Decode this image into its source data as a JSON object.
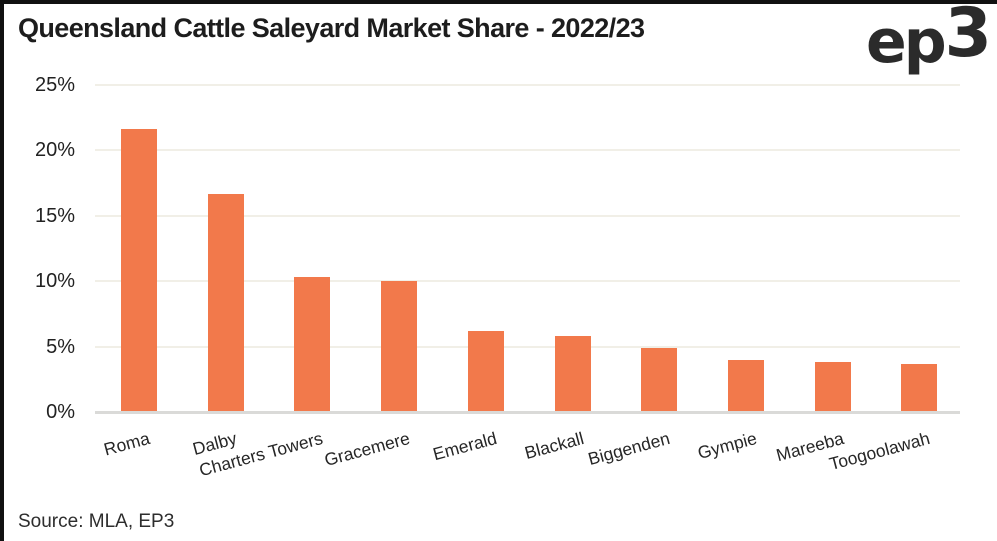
{
  "header": {
    "title": "Queensland Cattle Saleyard Market Share - 2022/23",
    "logo_ep": "ep",
    "logo_3": "3"
  },
  "footer": {
    "source": "Source: MLA, EP3"
  },
  "colors": {
    "bar": "#f2794b",
    "gridline": "#f1efe7",
    "baseline": "#dadad8",
    "title_text": "#1d1d1d",
    "border": "#111111"
  },
  "chart_data": {
    "type": "bar",
    "title": "Queensland Cattle Saleyard Market Share - 2022/23",
    "categories": [
      "Roma",
      "Dalby",
      "Charters Towers",
      "Gracemere",
      "Emerald",
      "Blackall",
      "Biggenden",
      "Gympie",
      "Mareeba",
      "Toogoolawah"
    ],
    "values": [
      21.6,
      16.7,
      10.3,
      10.0,
      6.2,
      5.8,
      4.9,
      4.0,
      3.8,
      3.7
    ],
    "unit": "%",
    "xlabel": "",
    "ylabel": "",
    "ylim": [
      0,
      25
    ],
    "yticks": [
      0,
      5,
      10,
      15,
      20,
      25
    ],
    "ytick_labels": [
      "0%",
      "5%",
      "10%",
      "15%",
      "20%",
      "25%"
    ],
    "grid": true,
    "legend": false,
    "bar_color": "#f2794b",
    "source": "Source: MLA, EP3"
  }
}
